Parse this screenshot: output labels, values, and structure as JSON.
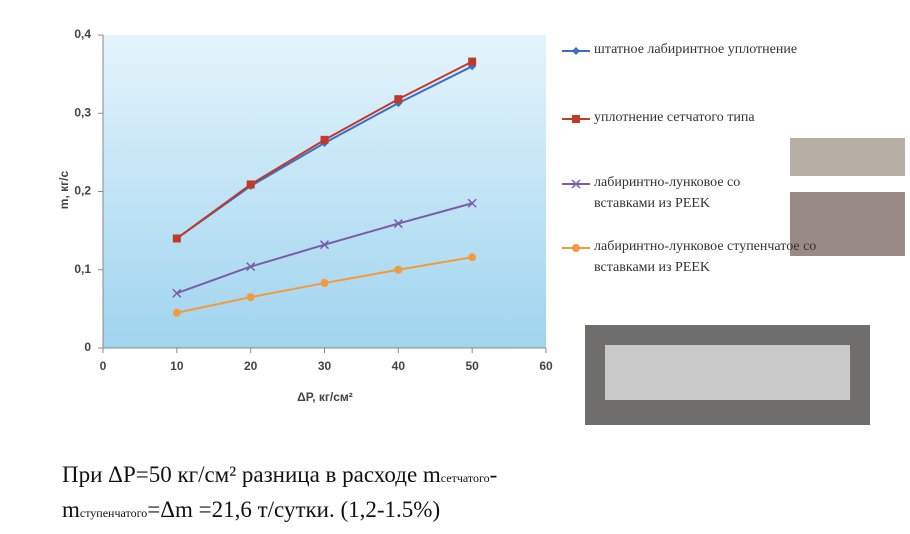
{
  "chart_data": {
    "type": "line",
    "x": [
      10,
      20,
      30,
      40,
      50
    ],
    "xlim": [
      0,
      60
    ],
    "xticks": [
      0,
      10,
      20,
      30,
      40,
      50,
      60
    ],
    "ylim": [
      0,
      0.4
    ],
    "yticks": [
      0,
      {
        "value": 0.1,
        "label": "0,1"
      },
      {
        "value": 0.2,
        "label": "0,2"
      },
      {
        "value": 0.3,
        "label": "0,3"
      },
      {
        "value": 0.4,
        "label": "0,4"
      }
    ],
    "x_label": "ΔP, кг/см²",
    "y_label": "m, кг/с",
    "grid": false,
    "legend": "right",
    "series": [
      {
        "name": "штатное лабиринтное уплотнение",
        "color": "#3a6fc4",
        "marker": "diamond",
        "values": [
          0.14,
          0.207,
          0.262,
          0.313,
          0.36
        ]
      },
      {
        "name": "уплотнение сетчатого типа",
        "color": "#c0392b",
        "marker": "square",
        "values": [
          0.14,
          0.209,
          0.266,
          0.318,
          0.366
        ]
      },
      {
        "name": "лабиринтно-лунковое со вставками из PEEK",
        "color": "#7a5ca8",
        "marker": "x",
        "values": [
          0.07,
          0.104,
          0.132,
          0.159,
          0.185
        ]
      },
      {
        "name": "лабиринтно-лунковое ступенчатое со вставками из PEEK",
        "color": "#f39a3c",
        "marker": "circle",
        "values": [
          0.045,
          0.065,
          0.083,
          0.1,
          0.116
        ]
      }
    ]
  },
  "footnote": {
    "line1": [
      "При ΔP=50 кг/см² разница в расходе m",
      "сетчатого",
      "-"
    ],
    "line2": [
      "m",
      "ступенчатого",
      "=Δm =21,6 т/сутки. (1,2-1.5%)"
    ]
  }
}
